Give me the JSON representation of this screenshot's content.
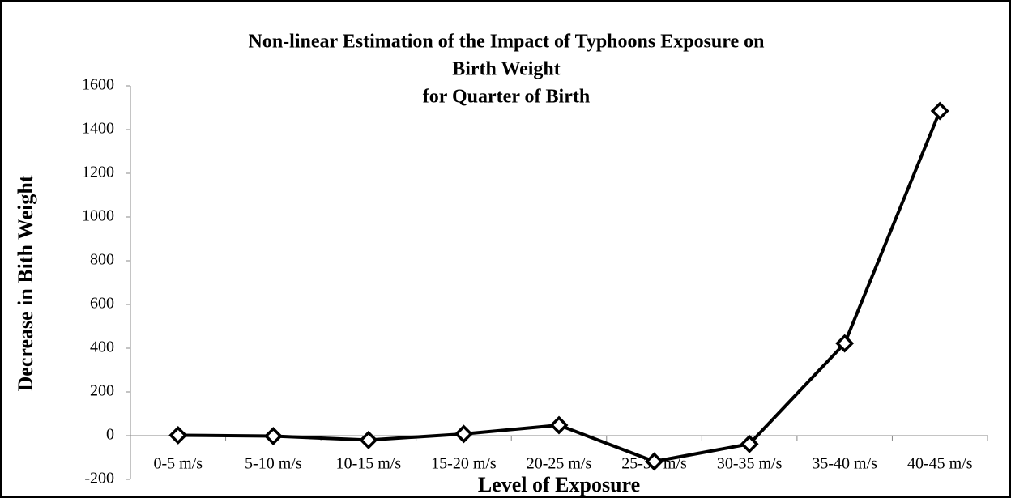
{
  "chart_data": {
    "type": "line",
    "title": [
      "Non-linear Estimation of the Impact of Typhoons Exposure  on",
      "Birth Weight",
      "for Quarter of Birth"
    ],
    "x_label": "Level of Exposure",
    "y_label": "Decrease in Bith Weight",
    "categories": [
      "0-5 m/s",
      "5-10 m/s",
      "10-15 m/s",
      "15-20 m/s",
      "20-25 m/s",
      "25-30 m/s",
      "30-35 m/s",
      "35-40 m/s",
      "40-45 m/s"
    ],
    "series": [
      {
        "name": "Decrease in Bith Weight",
        "color": "#000000",
        "values": [
          2,
          -2,
          -20,
          8,
          48,
          -118,
          -38,
          422,
          1485
        ]
      }
    ],
    "ylim": [
      -200,
      1600
    ],
    "yticks": [
      -200,
      0,
      200,
      400,
      600,
      800,
      1000,
      1200,
      1400,
      1600
    ],
    "grid": false
  }
}
